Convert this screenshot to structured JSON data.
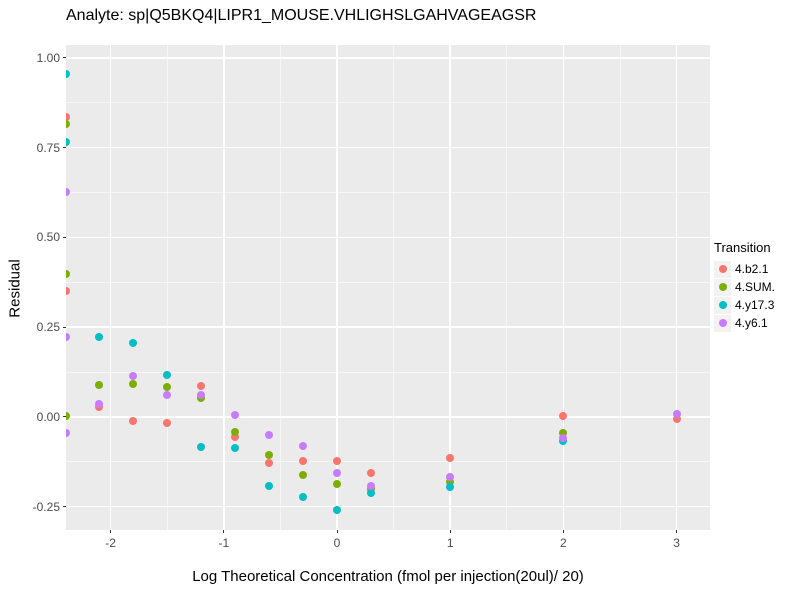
{
  "title": "Analyte: sp|Q5BKQ4|LIPR1_MOUSE.VHLIGHSLGAHVAGEAGSR",
  "colors": {
    "panel_bg": "#EBEBEB",
    "gridline": "#FFFFFF",
    "tick_text": "#4D4D4D",
    "text": "#000000"
  },
  "chart_data": {
    "type": "scatter",
    "title": "Analyte: sp|Q5BKQ4|LIPR1_MOUSE.VHLIGHSLGAHVAGEAGSR",
    "xlabel": "Log Theoretical Concentration (fmol per injection(20ul)/ 20)",
    "ylabel": "Residual",
    "xlim": [
      -2.394,
      3.295
    ],
    "ylim": [
      -0.315,
      1.036
    ],
    "grid": true,
    "legend_position": "right",
    "legend_title": "Transition",
    "x_ticks": [
      {
        "value": -2,
        "label": "-2"
      },
      {
        "value": -1,
        "label": "-1"
      },
      {
        "value": 0,
        "label": "0"
      },
      {
        "value": 1,
        "label": "1"
      },
      {
        "value": 2,
        "label": "2"
      },
      {
        "value": 3,
        "label": "3"
      }
    ],
    "y_ticks": [
      {
        "value": 1.0,
        "label": "1.00"
      },
      {
        "value": 0.75,
        "label": "0.75"
      },
      {
        "value": 0.5,
        "label": "0.50"
      },
      {
        "value": 0.25,
        "label": "0.25"
      },
      {
        "value": 0.0,
        "label": "0.00"
      },
      {
        "value": -0.25,
        "label": "-0.25"
      }
    ],
    "x_minor": [
      -1.5,
      -0.5,
      0.5,
      1.5,
      2.5
    ],
    "y_minor": [
      0.875,
      0.625,
      0.375,
      0.125,
      -0.125
    ],
    "series": [
      {
        "name": "4.b2.1",
        "color": "#F8766D",
        "points": [
          [
            -2.39,
            0.835
          ],
          [
            -2.39,
            0.35
          ],
          [
            -2.1,
            0.028
          ],
          [
            -1.8,
            -0.011
          ],
          [
            -1.5,
            -0.016
          ],
          [
            -1.2,
            0.086
          ],
          [
            -0.9,
            -0.055
          ],
          [
            -0.6,
            -0.129
          ],
          [
            -0.3,
            -0.122
          ],
          [
            0,
            -0.123
          ],
          [
            0.3,
            -0.157
          ],
          [
            1,
            -0.115
          ],
          [
            2,
            0.002
          ],
          [
            3,
            -0.005
          ]
        ]
      },
      {
        "name": "4.SUM.",
        "color": "#7CAE00",
        "points": [
          [
            -2.39,
            0.815
          ],
          [
            -2.39,
            0.398
          ],
          [
            -2.39,
            0.003
          ],
          [
            -2.1,
            0.089
          ],
          [
            -1.8,
            0.092
          ],
          [
            -1.5,
            0.082
          ],
          [
            -1.2,
            0.053
          ],
          [
            -0.9,
            -0.041
          ],
          [
            -0.6,
            -0.106
          ],
          [
            -0.3,
            -0.163
          ],
          [
            0,
            -0.187
          ],
          [
            0.3,
            -0.2
          ],
          [
            1,
            -0.18
          ],
          [
            2,
            -0.045
          ]
        ]
      },
      {
        "name": "4.y17.3",
        "color": "#00BFC4",
        "points": [
          [
            -2.39,
            0.955
          ],
          [
            -2.39,
            0.766
          ],
          [
            -2.1,
            0.224
          ],
          [
            -1.8,
            0.205
          ],
          [
            -1.5,
            0.118
          ],
          [
            -1.2,
            -0.084
          ],
          [
            -0.9,
            -0.087
          ],
          [
            -0.6,
            -0.193
          ],
          [
            -0.3,
            -0.222
          ],
          [
            0,
            -0.259
          ],
          [
            0.3,
            -0.213
          ],
          [
            1,
            -0.196
          ],
          [
            2,
            -0.066
          ]
        ]
      },
      {
        "name": "4.y6.1",
        "color": "#C77CFF",
        "points": [
          [
            -2.39,
            0.627
          ],
          [
            -2.39,
            0.224
          ],
          [
            -2.39,
            -0.044
          ],
          [
            -2.1,
            0.035
          ],
          [
            -1.8,
            0.113
          ],
          [
            -1.5,
            0.061
          ],
          [
            -1.2,
            0.06
          ],
          [
            -0.9,
            0.006
          ],
          [
            -0.6,
            -0.051
          ],
          [
            -0.3,
            -0.081
          ],
          [
            0,
            -0.157
          ],
          [
            0.3,
            -0.192
          ],
          [
            1,
            -0.166
          ],
          [
            2,
            -0.06
          ],
          [
            3,
            0.007
          ]
        ]
      }
    ]
  }
}
